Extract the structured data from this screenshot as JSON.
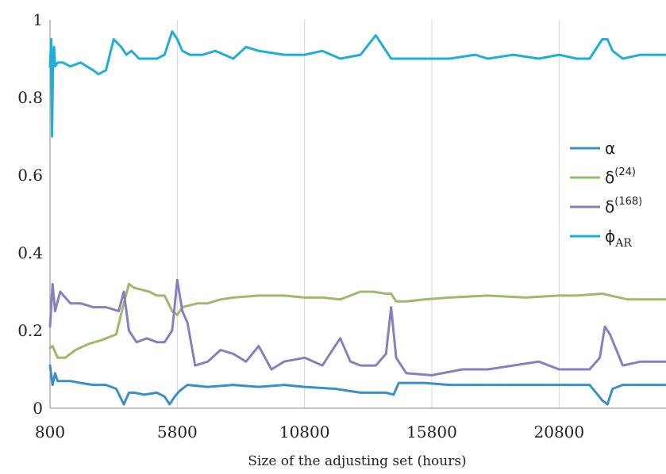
{
  "chart_data": {
    "type": "line",
    "title": "",
    "xlabel": "Size of the adjusting set  (hours)",
    "ylabel": "",
    "xlim": [
      800,
      25000
    ],
    "ylim": [
      0,
      1
    ],
    "x_ticks": [
      800,
      5800,
      10800,
      15800,
      20800
    ],
    "x_tick_labels": [
      "800",
      "5800",
      "10800",
      "15800",
      "20800"
    ],
    "y_ticks": [
      0,
      0.2,
      0.4,
      0.6,
      0.8,
      1
    ],
    "y_tick_labels": [
      "0",
      "0.2",
      "0.4",
      "0.6",
      "0.8",
      "1"
    ],
    "grid": "vertical",
    "legend_position": "right",
    "series": [
      {
        "name": "α",
        "name_base": "α",
        "name_sup": "",
        "name_sub": "",
        "color": "#3a8fc9",
        "x": [
          800,
          900,
          1000,
          1100,
          1300,
          1600,
          2000,
          2500,
          3000,
          3400,
          3700,
          3900,
          4100,
          4500,
          5000,
          5300,
          5500,
          5700,
          5900,
          6200,
          7000,
          8000,
          9000,
          10000,
          10800,
          12000,
          13000,
          14000,
          14300,
          14500,
          14800,
          15500,
          16500,
          18000,
          19500,
          20800,
          22000,
          22500,
          22700,
          22900,
          23300,
          24000,
          25000
        ],
        "y": [
          0.11,
          0.06,
          0.09,
          0.07,
          0.07,
          0.07,
          0.065,
          0.06,
          0.06,
          0.05,
          0.01,
          0.04,
          0.04,
          0.035,
          0.04,
          0.03,
          0.01,
          0.03,
          0.045,
          0.06,
          0.055,
          0.06,
          0.055,
          0.06,
          0.055,
          0.05,
          0.04,
          0.04,
          0.035,
          0.065,
          0.065,
          0.065,
          0.06,
          0.06,
          0.06,
          0.06,
          0.06,
          0.02,
          0.01,
          0.05,
          0.06,
          0.06,
          0.06
        ]
      },
      {
        "name": "δ(24)",
        "name_base": "δ",
        "name_sup": "(24)",
        "name_sub": "",
        "color": "#9bbb6a",
        "x": [
          800,
          900,
          1100,
          1400,
          1800,
          2300,
          2800,
          3400,
          3700,
          3900,
          4100,
          4400,
          4700,
          5000,
          5300,
          5600,
          5800,
          6000,
          6300,
          6600,
          7000,
          7500,
          8000,
          9000,
          10000,
          10800,
          11500,
          12200,
          13000,
          13500,
          14000,
          14200,
          14400,
          14800,
          15500,
          16500,
          18000,
          19500,
          20800,
          21500,
          22500,
          23500,
          25000
        ],
        "y": [
          0.155,
          0.16,
          0.13,
          0.13,
          0.15,
          0.165,
          0.175,
          0.19,
          0.27,
          0.32,
          0.31,
          0.305,
          0.3,
          0.29,
          0.29,
          0.25,
          0.24,
          0.26,
          0.265,
          0.27,
          0.27,
          0.28,
          0.285,
          0.29,
          0.29,
          0.285,
          0.285,
          0.28,
          0.3,
          0.3,
          0.295,
          0.295,
          0.275,
          0.275,
          0.28,
          0.285,
          0.29,
          0.285,
          0.29,
          0.29,
          0.295,
          0.28,
          0.28
        ]
      },
      {
        "name": "δ(168)",
        "name_base": "δ",
        "name_sup": "(168)",
        "name_sub": "",
        "color": "#8a7fbe",
        "x": [
          800,
          900,
          1000,
          1200,
          1600,
          2000,
          2500,
          3000,
          3500,
          3700,
          3900,
          4200,
          4600,
          5000,
          5300,
          5600,
          5800,
          6000,
          6200,
          6500,
          7000,
          7500,
          8000,
          8500,
          9000,
          9500,
          10000,
          10800,
          11500,
          12000,
          12200,
          12600,
          13000,
          13600,
          14000,
          14200,
          14400,
          14800,
          15800,
          17000,
          18000,
          19000,
          20000,
          20800,
          21500,
          22000,
          22400,
          22600,
          22800,
          23300,
          24000,
          25000
        ],
        "y": [
          0.21,
          0.32,
          0.25,
          0.3,
          0.27,
          0.27,
          0.26,
          0.26,
          0.25,
          0.3,
          0.2,
          0.17,
          0.18,
          0.17,
          0.17,
          0.2,
          0.33,
          0.25,
          0.22,
          0.11,
          0.12,
          0.15,
          0.14,
          0.12,
          0.16,
          0.1,
          0.12,
          0.13,
          0.11,
          0.16,
          0.18,
          0.12,
          0.11,
          0.11,
          0.14,
          0.26,
          0.13,
          0.09,
          0.085,
          0.1,
          0.1,
          0.11,
          0.12,
          0.1,
          0.1,
          0.1,
          0.13,
          0.21,
          0.19,
          0.11,
          0.12,
          0.12
        ]
      },
      {
        "name": "ϕAR",
        "name_base": "ϕ",
        "name_sup": "",
        "name_sub": "AR",
        "color": "#1faed6",
        "x": [
          800,
          850,
          880,
          920,
          960,
          1000,
          1100,
          1300,
          1600,
          2000,
          2500,
          2700,
          3000,
          3300,
          3600,
          3800,
          4000,
          4300,
          4700,
          5000,
          5300,
          5600,
          5800,
          6000,
          6300,
          6800,
          7300,
          8000,
          8500,
          9000,
          10000,
          10800,
          11500,
          12200,
          13000,
          13600,
          13900,
          14200,
          14400,
          14800,
          15500,
          16500,
          17500,
          18000,
          19000,
          20000,
          20800,
          21500,
          22000,
          22500,
          22700,
          22900,
          23300,
          24000,
          25000
        ],
        "y": [
          0.88,
          0.95,
          0.7,
          0.9,
          0.93,
          0.88,
          0.89,
          0.89,
          0.88,
          0.89,
          0.87,
          0.86,
          0.87,
          0.95,
          0.93,
          0.91,
          0.92,
          0.9,
          0.9,
          0.9,
          0.91,
          0.97,
          0.95,
          0.92,
          0.91,
          0.91,
          0.92,
          0.9,
          0.93,
          0.92,
          0.91,
          0.91,
          0.92,
          0.9,
          0.91,
          0.96,
          0.93,
          0.9,
          0.9,
          0.9,
          0.9,
          0.9,
          0.91,
          0.9,
          0.91,
          0.9,
          0.91,
          0.9,
          0.9,
          0.95,
          0.95,
          0.92,
          0.9,
          0.91,
          0.91
        ]
      }
    ]
  }
}
